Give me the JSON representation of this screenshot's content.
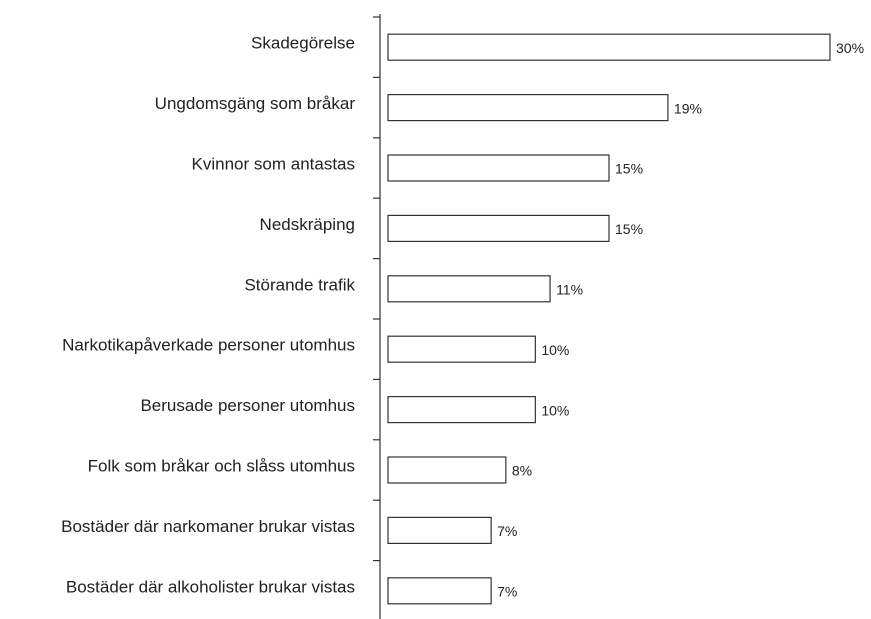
{
  "chart_data": {
    "type": "bar",
    "orientation": "horizontal",
    "categories": [
      "Skadegörelse",
      "Ungdomsgäng som bråkar",
      "Kvinnor som antastas",
      "Nedskräping",
      "Störande trafik",
      "Narkotikapåverkade personer utomhus",
      "Berusade personer utomhus",
      "Folk som bråkar och slåss utomhus",
      "Bostäder där narkomaner brukar vistas",
      "Bostäder där alkoholister brukar vistas"
    ],
    "values": [
      30,
      19,
      15,
      15,
      11,
      10,
      10,
      8,
      7,
      7
    ],
    "value_labels": [
      "30%",
      "19%",
      "15%",
      "15%",
      "11%",
      "10%",
      "10%",
      "8%",
      "7%",
      "7%"
    ],
    "color": "#ffffff"
  }
}
